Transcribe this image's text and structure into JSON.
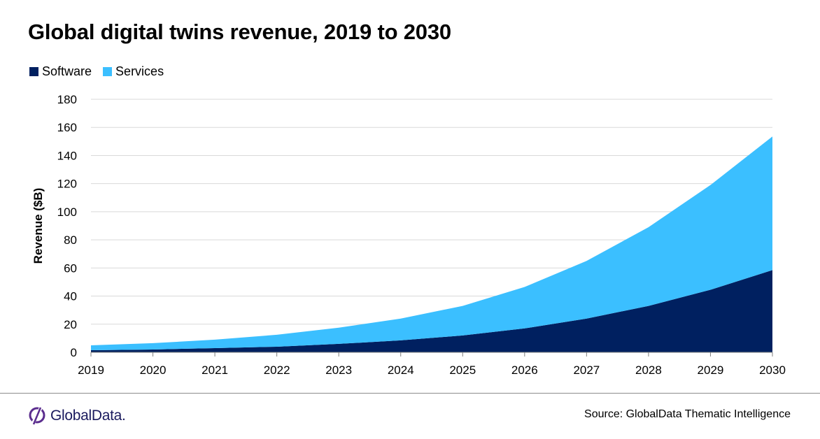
{
  "title": "Global digital twins revenue, 2019 to 2030",
  "source": "Source: GlobalData Thematic Intelligence",
  "logo": {
    "text": "GlobalData.",
    "icon": "globaldata-logo-icon",
    "color": "#1a1a5e"
  },
  "chart_data": {
    "type": "area",
    "stacked": true,
    "title": "Global digital twins revenue, 2019 to 2030",
    "xlabel": "",
    "ylabel": "Revenue ($B)",
    "ylim": [
      0,
      180
    ],
    "yticks": [
      0,
      20,
      40,
      60,
      80,
      100,
      120,
      140,
      160,
      180
    ],
    "grid": true,
    "legend_position": "top-left",
    "categories": [
      "2019",
      "2020",
      "2021",
      "2022",
      "2023",
      "2024",
      "2025",
      "2026",
      "2027",
      "2028",
      "2029",
      "2030"
    ],
    "series": [
      {
        "name": "Software",
        "color": "#002060",
        "values": [
          1.5,
          2,
          3,
          4,
          6,
          8.5,
          12,
          17,
          24,
          33,
          44.5,
          58.5
        ]
      },
      {
        "name": "Services",
        "color": "#3bbfff",
        "values": [
          3.5,
          4.5,
          6,
          8.5,
          11.5,
          15.5,
          21,
          29.5,
          41,
          56,
          74.5,
          95
        ]
      }
    ]
  }
}
